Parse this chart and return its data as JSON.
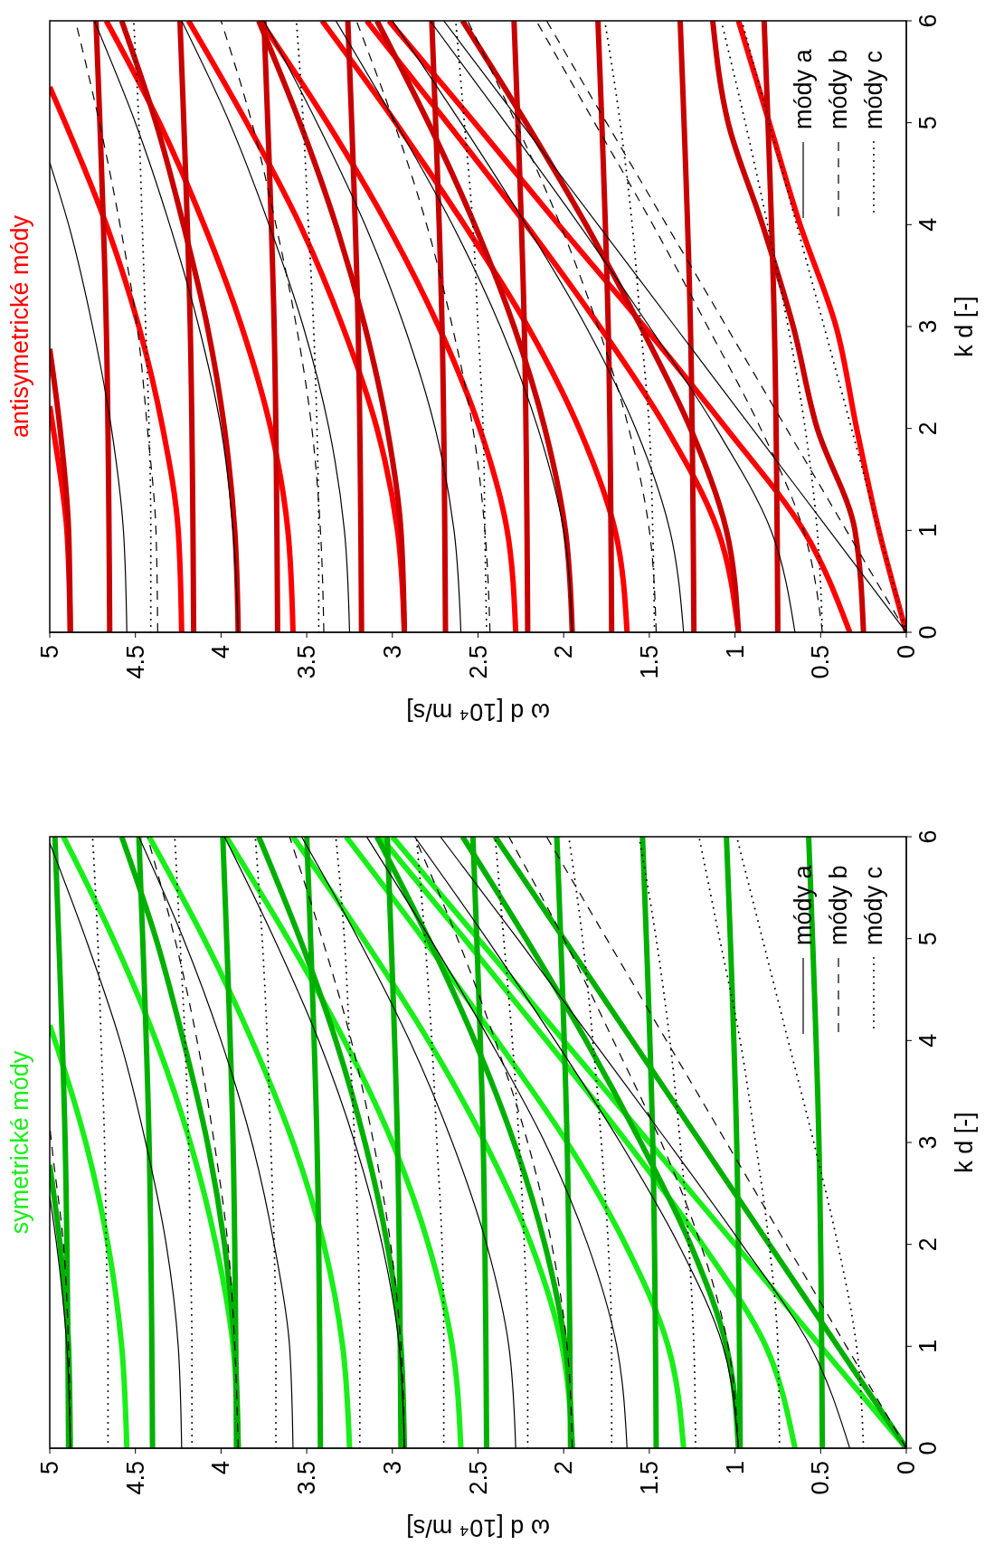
{
  "chart_data": [
    {
      "type": "line",
      "title": "antisymetrické módy",
      "xlabel": "ω d [10⁴ m/s]",
      "ylabel": "k d [-]",
      "xlim": [
        5,
        0
      ],
      "ylim": [
        0,
        6
      ],
      "xticks": [
        5,
        4.5,
        4,
        3.5,
        3,
        2.5,
        2,
        1.5,
        1,
        0.5,
        0
      ],
      "yticks": [
        0,
        1,
        2,
        3,
        4,
        5,
        6
      ],
      "legend": "top right",
      "series": [
        {
          "color": "#ff0000",
          "x": [
            0,
            0.16,
            0.29,
            0.41,
            0.62,
            0.8,
            0.98
          ],
          "values": [
            0,
            1,
            2,
            3,
            4,
            5,
            6
          ]
        },
        {
          "color": "#ff0000",
          "x": [
            0.33,
            0.6,
            1.05,
            1.53,
            2.03,
            2.52,
            3.02
          ],
          "values": [
            0,
            1,
            2,
            3,
            4,
            5,
            6
          ]
        },
        {
          "color": "#ff0000",
          "x": [
            0.98,
            1.1,
            1.4,
            1.79,
            2.22,
            2.68,
            3.15
          ],
          "values": [
            0,
            1,
            2,
            3,
            4,
            5,
            6
          ]
        },
        {
          "color": "#ff0000",
          "x": [
            1.63,
            1.7,
            1.91,
            2.21,
            2.58,
            2.98,
            3.41
          ],
          "values": [
            0,
            1,
            2,
            3,
            4,
            5,
            6
          ]
        },
        {
          "color": "#ff0000",
          "x": [
            2.28,
            2.33,
            2.49,
            2.73,
            3.03,
            3.38,
            3.77
          ],
          "values": [
            0,
            1,
            2,
            3,
            4,
            5,
            6
          ]
        },
        {
          "color": "#ff0000",
          "x": [
            2.93,
            2.97,
            3.09,
            3.29,
            3.54,
            3.85,
            4.19
          ],
          "values": [
            0,
            1,
            2,
            3,
            4,
            5,
            6
          ]
        },
        {
          "color": "#ff0000",
          "x": [
            3.58,
            3.61,
            3.71,
            3.88,
            4.1,
            4.36,
            4.67
          ],
          "values": [
            0,
            1,
            2,
            3,
            4,
            5,
            6
          ]
        },
        {
          "color": "#ff0000",
          "x": [
            4.23,
            4.25,
            4.34,
            4.48,
            4.67,
            4.91,
            5
          ],
          "values": [
            0,
            1,
            2,
            3,
            4,
            5,
            5.35
          ]
        },
        {
          "color": "#ff0000",
          "x": [
            4.88,
            4.9,
            4.98,
            5
          ],
          "values": [
            0,
            1,
            2,
            2.22
          ]
        },
        {
          "color": "#c80000",
          "x": [
            0.25,
            0.3,
            0.52,
            0.66,
            0.84,
            1.04,
            1.13
          ],
          "values": [
            0,
            1,
            2,
            3,
            4,
            5,
            6
          ]
        },
        {
          "color": "#c80000",
          "x": [
            0.98,
            1.05,
            1.26,
            1.55,
            1.87,
            2.22,
            2.59
          ],
          "values": [
            0,
            1,
            2,
            3,
            4,
            5,
            6
          ]
        },
        {
          "color": "#c80000",
          "x": [
            1.95,
            1.99,
            2.11,
            2.29,
            2.52,
            2.79,
            3.09
          ],
          "values": [
            0,
            1,
            2,
            3,
            4,
            5,
            6
          ]
        },
        {
          "color": "#c80000",
          "x": [
            2.93,
            2.95,
            3.03,
            3.16,
            3.33,
            3.54,
            3.78
          ],
          "values": [
            0,
            1,
            2,
            3,
            4,
            5,
            6
          ]
        },
        {
          "color": "#c80000",
          "x": [
            3.9,
            3.92,
            3.98,
            4.08,
            4.22,
            4.38,
            4.58
          ],
          "values": [
            0,
            1,
            2,
            3,
            4,
            5,
            6
          ]
        },
        {
          "color": "#c80000",
          "x": [
            4.88,
            4.89,
            4.94,
            5
          ],
          "values": [
            0,
            1,
            2,
            2.78
          ]
        },
        {
          "color": "#c80000",
          "x": [
            0.75,
            0.77,
            0.83
          ],
          "values": [
            0,
            3,
            6
          ]
        },
        {
          "color": "#c80000",
          "x": [
            1.24,
            1.26,
            1.32
          ],
          "values": [
            0,
            3,
            6
          ]
        },
        {
          "color": "#c80000",
          "x": [
            1.72,
            1.74,
            1.8
          ],
          "values": [
            0,
            3,
            6
          ]
        },
        {
          "color": "#c80000",
          "x": [
            2.21,
            2.23,
            2.29
          ],
          "values": [
            0,
            3,
            6
          ]
        },
        {
          "color": "#c80000",
          "x": [
            2.69,
            2.71,
            2.77
          ],
          "values": [
            0,
            3,
            6
          ]
        },
        {
          "color": "#c80000",
          "x": [
            3.18,
            3.2,
            3.26
          ],
          "values": [
            0,
            3,
            6
          ]
        },
        {
          "color": "#c80000",
          "x": [
            3.67,
            3.69,
            3.75
          ],
          "values": [
            0,
            3,
            6
          ]
        },
        {
          "color": "#c80000",
          "x": [
            4.16,
            4.18,
            4.24
          ],
          "values": [
            0,
            3,
            6
          ]
        },
        {
          "color": "#c80000",
          "x": [
            4.65,
            4.67,
            4.73
          ],
          "values": [
            0,
            3,
            6
          ]
        },
        {
          "name": "módy a",
          "color": "#000000",
          "line_style": "solid",
          "x": [
            0,
            0.45,
            0.9,
            1.35,
            1.8,
            2.25,
            2.7
          ],
          "values": [
            0,
            1,
            2,
            3,
            4,
            5,
            6
          ]
        },
        {
          "color": "#000000",
          "line_style": "solid",
          "x": [
            0.65,
            0.79,
            1.11,
            1.5,
            1.91,
            2.34,
            2.78
          ],
          "values": [
            0,
            1,
            2,
            3,
            4,
            5,
            6
          ]
        },
        {
          "color": "#000000",
          "line_style": "solid",
          "x": [
            1.3,
            1.38,
            1.58,
            1.87,
            2.22,
            2.6,
            3
          ],
          "values": [
            0,
            1,
            2,
            3,
            4,
            5,
            6
          ]
        },
        {
          "color": "#000000",
          "line_style": "solid",
          "x": [
            1.95,
            2,
            2.15,
            2.37,
            2.65,
            2.98,
            3.33
          ],
          "values": [
            0,
            1,
            2,
            3,
            4,
            5,
            6
          ]
        },
        {
          "color": "#000000",
          "line_style": "solid",
          "x": [
            2.6,
            2.64,
            2.75,
            2.93,
            3.16,
            3.44,
            3.75
          ],
          "values": [
            0,
            1,
            2,
            3,
            4,
            5,
            6
          ]
        },
        {
          "color": "#000000",
          "line_style": "solid",
          "x": [
            3.25,
            3.28,
            3.37,
            3.52,
            3.72,
            3.95,
            4.23
          ],
          "values": [
            0,
            1,
            2,
            3,
            4,
            5,
            6
          ]
        },
        {
          "color": "#000000",
          "line_style": "solid",
          "x": [
            3.9,
            3.93,
            4,
            4.13,
            4.3,
            4.5,
            4.74
          ],
          "values": [
            0,
            1,
            2,
            3,
            4,
            5,
            6
          ]
        },
        {
          "color": "#000000",
          "line_style": "solid",
          "x": [
            4.55,
            4.57,
            4.64,
            4.75,
            4.89,
            5
          ],
          "values": [
            0,
            1,
            2,
            3,
            4,
            4.61
          ]
        },
        {
          "name": "módy b",
          "color": "#000000",
          "line_style": "dashed",
          "x": [
            0,
            0.35,
            0.7,
            1.05,
            1.4,
            1.75,
            2.1
          ],
          "values": [
            0,
            1,
            2,
            3,
            4,
            5,
            6
          ]
        },
        {
          "color": "#000000",
          "line_style": "dashed",
          "x": [
            0.49,
            0.6,
            0.85,
            1.16,
            1.48,
            1.82,
            2.16
          ],
          "values": [
            0,
            1,
            2,
            3,
            4,
            5,
            6
          ]
        },
        {
          "color": "#000000",
          "line_style": "dashed",
          "x": [
            1.46,
            1.5,
            1.62,
            1.8,
            2.02,
            2.28,
            2.56
          ],
          "values": [
            0,
            1,
            2,
            3,
            4,
            5,
            6
          ]
        },
        {
          "color": "#000000",
          "line_style": "dashed",
          "x": [
            2.43,
            2.46,
            2.53,
            2.65,
            2.8,
            2.99,
            3.21
          ],
          "values": [
            0,
            1,
            2,
            3,
            4,
            5,
            6
          ]
        },
        {
          "color": "#000000",
          "line_style": "dashed",
          "x": [
            3.4,
            3.42,
            3.47,
            3.56,
            3.68,
            3.82,
            4
          ],
          "values": [
            0,
            1,
            2,
            3,
            4,
            5,
            6
          ]
        },
        {
          "color": "#000000",
          "line_style": "dashed",
          "x": [
            4.37,
            4.38,
            4.43,
            4.49,
            4.59,
            4.71,
            4.85
          ],
          "values": [
            0,
            1,
            2,
            3,
            4,
            5,
            6
          ]
        },
        {
          "name": "módy c",
          "color": "#000000",
          "line_style": "dotted",
          "x": [
            0,
            0.16,
            0.32,
            0.48,
            0.64,
            0.8,
            0.96
          ],
          "values": [
            0,
            1,
            2,
            3,
            4,
            5,
            6
          ]
        },
        {
          "color": "#000000",
          "line_style": "dotted",
          "x": [
            0.49,
            0.52,
            0.59,
            0.69,
            0.81,
            0.94,
            1.08
          ],
          "values": [
            0,
            1,
            2,
            3,
            4,
            5,
            6
          ]
        },
        {
          "color": "#000000",
          "line_style": "dotted",
          "x": [
            1.47,
            1.48,
            1.5,
            1.55,
            1.6,
            1.67,
            1.76
          ],
          "values": [
            0,
            1,
            2,
            3,
            4,
            5,
            6
          ]
        },
        {
          "color": "#000000",
          "line_style": "dotted",
          "x": [
            2.45,
            2.46,
            2.47,
            2.5,
            2.53,
            2.58,
            2.63
          ],
          "values": [
            0,
            1,
            2,
            3,
            4,
            5,
            6
          ]
        },
        {
          "color": "#000000",
          "line_style": "dotted",
          "x": [
            3.43,
            3.43,
            3.44,
            3.46,
            3.49,
            3.52,
            3.56
          ],
          "values": [
            0,
            1,
            2,
            3,
            4,
            5,
            6
          ]
        },
        {
          "color": "#000000",
          "line_style": "dotted",
          "x": [
            4.41,
            4.41,
            4.42,
            4.44,
            4.46,
            4.48,
            4.51
          ],
          "values": [
            0,
            1,
            2,
            3,
            4,
            5,
            6
          ]
        }
      ]
    },
    {
      "type": "line",
      "title": "symetrické módy",
      "xlabel": "ω d [10⁴ m/s]",
      "ylabel": "k d [-]",
      "xlim": [
        5,
        0
      ],
      "ylim": [
        0,
        6
      ],
      "xticks": [
        5,
        4.5,
        4,
        3.5,
        3,
        2.5,
        2,
        1.5,
        1,
        0.5,
        0
      ],
      "yticks": [
        0,
        1,
        2,
        3,
        4,
        5,
        6
      ],
      "legend": "top right",
      "series": [
        {
          "color": "#1aee1a",
          "x": [
            0,
            0.5,
            1,
            1.5,
            2,
            2.5,
            3
          ],
          "values": [
            0,
            1,
            2,
            3,
            4,
            5,
            6
          ]
        },
        {
          "color": "#1aee1a",
          "x": [
            0.65,
            0.82,
            1.19,
            1.63,
            2.1,
            2.58,
            3.07
          ],
          "values": [
            0,
            1,
            2,
            3,
            4,
            5,
            6
          ]
        },
        {
          "color": "#1aee1a",
          "x": [
            1.3,
            1.39,
            1.64,
            1.98,
            2.39,
            2.82,
            3.27
          ],
          "values": [
            0,
            1,
            2,
            3,
            4,
            5,
            6
          ]
        },
        {
          "color": "#1aee1a",
          "x": [
            1.95,
            2.01,
            2.19,
            2.46,
            2.79,
            3.17,
            3.58
          ],
          "values": [
            0,
            1,
            2,
            3,
            4,
            5,
            6
          ]
        },
        {
          "color": "#1aee1a",
          "x": [
            2.6,
            2.65,
            2.79,
            3,
            3.28,
            3.61,
            3.97
          ],
          "values": [
            0,
            1,
            2,
            3,
            4,
            5,
            6
          ]
        },
        {
          "color": "#1aee1a",
          "x": [
            3.25,
            3.29,
            3.4,
            3.58,
            3.82,
            4.1,
            4.42
          ],
          "values": [
            0,
            1,
            2,
            3,
            4,
            5,
            6
          ]
        },
        {
          "color": "#1aee1a",
          "x": [
            3.9,
            3.93,
            4.03,
            4.18,
            4.38,
            4.63,
            4.92
          ],
          "values": [
            0,
            1,
            2,
            3,
            4,
            5,
            6
          ]
        },
        {
          "color": "#1aee1a",
          "x": [
            4.55,
            4.58,
            4.66,
            4.79,
            4.97,
            5
          ],
          "values": [
            0,
            1,
            2,
            3,
            4,
            4.15
          ]
        },
        {
          "color": "#00b000",
          "x": [
            0,
            0.4,
            0.8,
            1.2,
            1.6,
            2,
            2.4
          ],
          "values": [
            0,
            1,
            2,
            3,
            4,
            5,
            6
          ]
        },
        {
          "color": "#00b000",
          "x": [
            0.98,
            1.05,
            1.26,
            1.55,
            1.87,
            2.22,
            2.59
          ],
          "values": [
            0,
            1,
            2,
            3,
            4,
            5,
            6
          ]
        },
        {
          "color": "#00b000",
          "x": [
            1.95,
            1.99,
            2.11,
            2.29,
            2.52,
            2.79,
            3.09
          ],
          "values": [
            0,
            1,
            2,
            3,
            4,
            5,
            6
          ]
        },
        {
          "color": "#00b000",
          "x": [
            2.93,
            2.95,
            3.03,
            3.16,
            3.33,
            3.54,
            3.78
          ],
          "values": [
            0,
            1,
            2,
            3,
            4,
            5,
            6
          ]
        },
        {
          "color": "#00b000",
          "x": [
            3.9,
            3.92,
            3.98,
            4.08,
            4.22,
            4.38,
            4.58
          ],
          "values": [
            0,
            1,
            2,
            3,
            4,
            5,
            6
          ]
        },
        {
          "color": "#00b000",
          "x": [
            4.88,
            4.89,
            4.94,
            5
          ],
          "values": [
            0,
            1,
            2,
            2.78
          ]
        },
        {
          "color": "#00b000",
          "x": [
            0.49,
            0.51,
            0.57
          ],
          "values": [
            0,
            3,
            6
          ]
        },
        {
          "color": "#00b000",
          "x": [
            0.97,
            0.99,
            1.05
          ],
          "values": [
            0,
            3,
            6
          ]
        },
        {
          "color": "#00b000",
          "x": [
            1.46,
            1.48,
            1.54
          ],
          "values": [
            0,
            3,
            6
          ]
        },
        {
          "color": "#00b000",
          "x": [
            1.96,
            1.98,
            2.04
          ],
          "values": [
            0,
            3,
            6
          ]
        },
        {
          "color": "#00b000",
          "x": [
            2.45,
            2.47,
            2.53
          ],
          "values": [
            0,
            3,
            6
          ]
        },
        {
          "color": "#00b000",
          "x": [
            2.95,
            2.97,
            3.03
          ],
          "values": [
            0,
            3,
            6
          ]
        },
        {
          "color": "#00b000",
          "x": [
            3.42,
            3.44,
            3.5
          ],
          "values": [
            0,
            3,
            6
          ]
        },
        {
          "color": "#00b000",
          "x": [
            3.91,
            3.93,
            3.99
          ],
          "values": [
            0,
            3,
            6
          ]
        },
        {
          "color": "#00b000",
          "x": [
            4.4,
            4.42,
            4.48
          ],
          "values": [
            0,
            3,
            6
          ]
        },
        {
          "color": "#00b000",
          "x": [
            4.89,
            4.91,
            4.97
          ],
          "values": [
            0,
            3,
            6
          ]
        },
        {
          "name": "módy a",
          "color": "#000000",
          "line_style": "solid",
          "x": [
            0.33,
            0.56,
            0.96,
            1.39,
            1.83,
            2.27,
            2.72
          ],
          "values": [
            0,
            1,
            2,
            3,
            4,
            5,
            6
          ]
        },
        {
          "color": "#000000",
          "line_style": "solid",
          "x": [
            0.98,
            1.07,
            1.33,
            1.67,
            2.05,
            2.45,
            2.87
          ],
          "values": [
            0,
            1,
            2,
            3,
            4,
            5,
            6
          ]
        },
        {
          "color": "#000000",
          "line_style": "solid",
          "x": [
            1.63,
            1.69,
            1.86,
            2.11,
            2.43,
            2.78,
            3.15
          ],
          "values": [
            0,
            1,
            2,
            3,
            4,
            5,
            6
          ]
        },
        {
          "color": "#000000",
          "line_style": "solid",
          "x": [
            2.28,
            2.32,
            2.45,
            2.65,
            2.9,
            3.2,
            3.53
          ],
          "values": [
            0,
            1,
            2,
            3,
            4,
            5,
            6
          ]
        },
        {
          "color": "#000000",
          "line_style": "solid",
          "x": [
            2.93,
            2.96,
            3.06,
            3.22,
            3.43,
            3.69,
            3.98
          ],
          "values": [
            0,
            1,
            2,
            3,
            4,
            5,
            6
          ]
        },
        {
          "color": "#000000",
          "line_style": "solid",
          "x": [
            3.58,
            3.6,
            3.69,
            3.82,
            4,
            4.22,
            4.48
          ],
          "values": [
            0,
            1,
            2,
            3,
            4,
            5,
            6
          ]
        },
        {
          "color": "#000000",
          "line_style": "solid",
          "x": [
            4.23,
            4.25,
            4.32,
            4.44,
            4.59,
            4.79,
            5
          ],
          "values": [
            0,
            1,
            2,
            3,
            4,
            5,
            5.94
          ]
        },
        {
          "color": "#000000",
          "line_style": "solid",
          "x": [
            4.88,
            4.9,
            4.96,
            5
          ],
          "values": [
            0,
            1,
            2,
            2.47
          ]
        },
        {
          "name": "módy b",
          "color": "#000000",
          "line_style": "dashed",
          "x": [
            0,
            0.35,
            0.7,
            1.05,
            1.4,
            1.75,
            2.1
          ],
          "values": [
            0,
            1,
            2,
            3,
            4,
            5,
            6
          ]
        },
        {
          "color": "#000000",
          "line_style": "dashed",
          "x": [
            0.98,
            1.04,
            1.2,
            1.43,
            1.71,
            2,
            2.32
          ],
          "values": [
            0,
            1,
            2,
            3,
            4,
            5,
            6
          ]
        },
        {
          "color": "#000000",
          "line_style": "dashed",
          "x": [
            1.95,
            1.98,
            2.07,
            2.21,
            2.4,
            2.62,
            2.87
          ],
          "values": [
            0,
            1,
            2,
            3,
            4,
            5,
            6
          ]
        },
        {
          "color": "#000000",
          "line_style": "dashed",
          "x": [
            2.93,
            2.95,
            3.01,
            3.11,
            3.24,
            3.41,
            3.6
          ],
          "values": [
            0,
            1,
            2,
            3,
            4,
            5,
            6
          ]
        },
        {
          "color": "#000000",
          "line_style": "dashed",
          "x": [
            3.9,
            3.92,
            3.96,
            4.04,
            4.14,
            4.27,
            4.43
          ],
          "values": [
            0,
            1,
            2,
            3,
            4,
            5,
            6
          ]
        },
        {
          "color": "#000000",
          "line_style": "dashed",
          "x": [
            4.88,
            4.89,
            4.92,
            4.99,
            5
          ],
          "values": [
            0,
            1,
            2,
            3,
            3.17
          ]
        },
        {
          "name": "módy c",
          "color": "#000000",
          "line_style": "dotted",
          "x": [
            0.25,
            0.29,
            0.4,
            0.54,
            0.69,
            0.84,
            0.99
          ],
          "values": [
            0,
            1,
            2,
            3,
            4,
            5,
            6
          ]
        },
        {
          "color": "#000000",
          "line_style": "dotted",
          "x": [
            0.74,
            0.75,
            0.8,
            0.88,
            0.97,
            1.09,
            1.21
          ],
          "values": [
            0,
            1,
            2,
            3,
            4,
            5,
            6
          ]
        },
        {
          "color": "#000000",
          "line_style": "dotted",
          "x": [
            1.23,
            1.24,
            1.27,
            1.32,
            1.38,
            1.46,
            1.56
          ],
          "values": [
            0,
            1,
            2,
            3,
            4,
            5,
            6
          ]
        },
        {
          "color": "#000000",
          "line_style": "dotted",
          "x": [
            1.72,
            1.72,
            1.74,
            1.78,
            1.83,
            1.89,
            1.97
          ],
          "values": [
            0,
            1,
            2,
            3,
            4,
            5,
            6
          ]
        },
        {
          "color": "#000000",
          "line_style": "dotted",
          "x": [
            2.21,
            2.21,
            2.23,
            2.26,
            2.3,
            2.35,
            2.4
          ],
          "values": [
            0,
            1,
            2,
            3,
            4,
            5,
            6
          ]
        },
        {
          "color": "#000000",
          "line_style": "dotted",
          "x": [
            2.7,
            2.7,
            2.71,
            2.74,
            2.77,
            2.81,
            2.86
          ],
          "values": [
            0,
            1,
            2,
            3,
            4,
            5,
            6
          ]
        },
        {
          "color": "#000000",
          "line_style": "dotted",
          "x": [
            3.19,
            3.19,
            3.2,
            3.22,
            3.25,
            3.28,
            3.33
          ],
          "values": [
            0,
            1,
            2,
            3,
            4,
            5,
            6
          ]
        },
        {
          "color": "#000000",
          "line_style": "dotted",
          "x": [
            3.68,
            3.68,
            3.69,
            3.71,
            3.73,
            3.76,
            3.8
          ],
          "values": [
            0,
            1,
            2,
            3,
            4,
            5,
            6
          ]
        },
        {
          "color": "#000000",
          "line_style": "dotted",
          "x": [
            4.17,
            4.17,
            4.18,
            4.19,
            4.21,
            4.24,
            4.27
          ],
          "values": [
            0,
            1,
            2,
            3,
            4,
            5,
            6
          ]
        },
        {
          "color": "#000000",
          "line_style": "dotted",
          "x": [
            4.66,
            4.66,
            4.67,
            4.68,
            4.7,
            4.72,
            4.75
          ],
          "values": [
            0,
            1,
            2,
            3,
            4,
            5,
            6
          ]
        }
      ]
    }
  ]
}
